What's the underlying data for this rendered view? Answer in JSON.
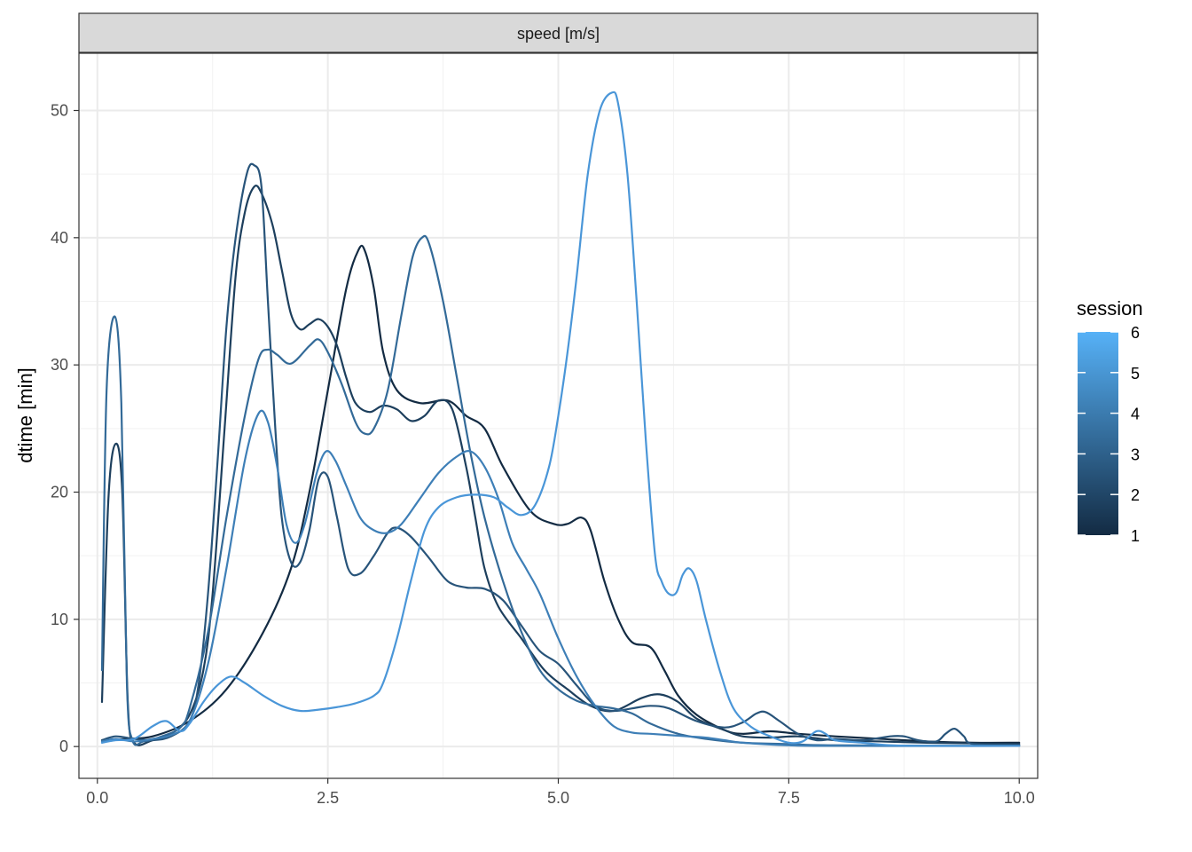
{
  "chart_data": {
    "type": "line",
    "facet_label": "speed [m/s]",
    "xlabel": "",
    "ylabel": "dtime [min]",
    "xlim": [
      -0.2,
      10.2
    ],
    "ylim": [
      -2.5,
      54.5
    ],
    "x_ticks": [
      0,
      2.5,
      5,
      7.5,
      10
    ],
    "x_tick_labels": [
      "0.0",
      "2.5",
      "5.0",
      "7.5",
      "10.0"
    ],
    "y_ticks": [
      0,
      10,
      20,
      30,
      40,
      50
    ],
    "y_tick_labels": [
      "0",
      "10",
      "20",
      "30",
      "40",
      "50"
    ],
    "grid": true,
    "legend": {
      "title": "session",
      "position": "right",
      "type": "colorbar",
      "breaks": [
        1,
        2,
        3,
        4,
        5,
        6
      ],
      "labels": [
        "1",
        "2",
        "3",
        "4",
        "5",
        "6"
      ],
      "low_color": "#132B43",
      "high_color": "#56B1F7"
    },
    "series": [
      {
        "session": 1,
        "color": "#132B43",
        "points": [
          [
            0.05,
            0.5
          ],
          [
            0.3,
            0.6
          ],
          [
            0.6,
            0.8
          ],
          [
            1.0,
            2.0
          ],
          [
            1.4,
            4.5
          ],
          [
            1.8,
            9.0
          ],
          [
            2.1,
            14.0
          ],
          [
            2.3,
            20.0
          ],
          [
            2.5,
            28.0
          ],
          [
            2.7,
            36.0
          ],
          [
            2.83,
            39.0
          ],
          [
            2.9,
            39.0
          ],
          [
            3.0,
            36.0
          ],
          [
            3.1,
            31.0
          ],
          [
            3.25,
            28.0
          ],
          [
            3.5,
            27.0
          ],
          [
            3.8,
            27.2
          ],
          [
            4.0,
            26.0
          ],
          [
            4.2,
            25.0
          ],
          [
            4.4,
            22.0
          ],
          [
            4.7,
            18.5
          ],
          [
            4.95,
            17.5
          ],
          [
            5.1,
            17.5
          ],
          [
            5.25,
            18.0
          ],
          [
            5.35,
            17.0
          ],
          [
            5.5,
            13.0
          ],
          [
            5.65,
            10.0
          ],
          [
            5.8,
            8.2
          ],
          [
            6.0,
            7.8
          ],
          [
            6.15,
            6.0
          ],
          [
            6.3,
            4.0
          ],
          [
            6.5,
            2.5
          ],
          [
            6.8,
            1.3
          ],
          [
            7.0,
            1.0
          ],
          [
            7.3,
            1.2
          ],
          [
            7.6,
            1.0
          ],
          [
            8.0,
            0.8
          ],
          [
            8.5,
            0.6
          ],
          [
            9.0,
            0.4
          ],
          [
            9.5,
            0.3
          ],
          [
            10.0,
            0.3
          ]
        ]
      },
      {
        "session": 2,
        "color": "#1D3F5D",
        "points": [
          [
            0.05,
            3.5
          ],
          [
            0.12,
            19.5
          ],
          [
            0.2,
            23.8
          ],
          [
            0.27,
            20.0
          ],
          [
            0.33,
            3.5
          ],
          [
            0.4,
            0.3
          ],
          [
            0.6,
            0.5
          ],
          [
            0.8,
            1.0
          ],
          [
            1.0,
            2.5
          ],
          [
            1.15,
            6.0
          ],
          [
            1.25,
            12.0
          ],
          [
            1.38,
            25.0
          ],
          [
            1.5,
            37.0
          ],
          [
            1.6,
            42.0
          ],
          [
            1.7,
            44.0
          ],
          [
            1.78,
            43.5
          ],
          [
            1.9,
            41.0
          ],
          [
            2.0,
            37.5
          ],
          [
            2.1,
            34.0
          ],
          [
            2.2,
            32.8
          ],
          [
            2.3,
            33.2
          ],
          [
            2.4,
            33.6
          ],
          [
            2.5,
            33.0
          ],
          [
            2.6,
            31.5
          ],
          [
            2.7,
            29.0
          ],
          [
            2.8,
            27.0
          ],
          [
            2.95,
            26.3
          ],
          [
            3.1,
            26.8
          ],
          [
            3.25,
            26.5
          ],
          [
            3.4,
            25.6
          ],
          [
            3.55,
            26.0
          ],
          [
            3.7,
            27.2
          ],
          [
            3.85,
            26.5
          ],
          [
            4.0,
            22.0
          ],
          [
            4.1,
            18.0
          ],
          [
            4.2,
            14.0
          ],
          [
            4.35,
            11.0
          ],
          [
            4.6,
            8.5
          ],
          [
            4.85,
            6.0
          ],
          [
            5.1,
            4.5
          ],
          [
            5.35,
            3.2
          ],
          [
            5.6,
            2.8
          ],
          [
            5.9,
            3.8
          ],
          [
            6.1,
            4.1
          ],
          [
            6.3,
            3.5
          ],
          [
            6.5,
            2.2
          ],
          [
            6.8,
            1.3
          ],
          [
            7.0,
            0.8
          ],
          [
            7.3,
            0.7
          ],
          [
            7.6,
            0.8
          ],
          [
            8.0,
            0.5
          ],
          [
            8.5,
            0.4
          ],
          [
            9.0,
            0.3
          ],
          [
            10.0,
            0.2
          ]
        ]
      },
      {
        "session": 3,
        "color": "#28547A",
        "points": [
          [
            0.05,
            0.5
          ],
          [
            0.2,
            0.8
          ],
          [
            0.4,
            0.6
          ],
          [
            0.6,
            0.5
          ],
          [
            0.8,
            0.8
          ],
          [
            1.0,
            2.0
          ],
          [
            1.1,
            5.0
          ],
          [
            1.2,
            12.0
          ],
          [
            1.3,
            22.0
          ],
          [
            1.4,
            33.0
          ],
          [
            1.5,
            40.0
          ],
          [
            1.62,
            45.0
          ],
          [
            1.7,
            45.7
          ],
          [
            1.78,
            44.0
          ],
          [
            1.85,
            35.0
          ],
          [
            1.93,
            25.0
          ],
          [
            2.0,
            18.0
          ],
          [
            2.1,
            14.5
          ],
          [
            2.2,
            14.5
          ],
          [
            2.3,
            17.0
          ],
          [
            2.4,
            21.0
          ],
          [
            2.5,
            21.2
          ],
          [
            2.6,
            18.0
          ],
          [
            2.72,
            14.0
          ],
          [
            2.85,
            13.6
          ],
          [
            3.0,
            15.0
          ],
          [
            3.15,
            16.8
          ],
          [
            3.25,
            17.2
          ],
          [
            3.4,
            16.5
          ],
          [
            3.6,
            14.8
          ],
          [
            3.8,
            13.0
          ],
          [
            4.0,
            12.5
          ],
          [
            4.2,
            12.4
          ],
          [
            4.4,
            11.5
          ],
          [
            4.6,
            9.5
          ],
          [
            4.8,
            7.5
          ],
          [
            5.0,
            6.5
          ],
          [
            5.2,
            4.8
          ],
          [
            5.4,
            3.2
          ],
          [
            5.6,
            2.8
          ],
          [
            5.8,
            3.0
          ],
          [
            6.0,
            3.2
          ],
          [
            6.2,
            3.0
          ],
          [
            6.5,
            2.0
          ],
          [
            6.8,
            1.5
          ],
          [
            7.0,
            1.9
          ],
          [
            7.15,
            2.6
          ],
          [
            7.25,
            2.7
          ],
          [
            7.4,
            2.0
          ],
          [
            7.6,
            1.0
          ],
          [
            7.8,
            0.5
          ],
          [
            8.0,
            0.6
          ],
          [
            8.3,
            0.5
          ],
          [
            8.6,
            0.8
          ],
          [
            8.75,
            0.8
          ],
          [
            8.9,
            0.5
          ],
          [
            9.1,
            0.4
          ],
          [
            9.2,
            1.0
          ],
          [
            9.3,
            1.4
          ],
          [
            9.4,
            0.8
          ],
          [
            9.5,
            0.2
          ],
          [
            10.0,
            0.1
          ]
        ]
      },
      {
        "session": 4,
        "color": "#336A98",
        "points": [
          [
            0.05,
            6.0
          ],
          [
            0.1,
            28.0
          ],
          [
            0.19,
            33.8
          ],
          [
            0.26,
            27.0
          ],
          [
            0.32,
            5.0
          ],
          [
            0.38,
            0.5
          ],
          [
            0.5,
            0.4
          ],
          [
            0.7,
            0.8
          ],
          [
            0.9,
            1.5
          ],
          [
            1.0,
            3.0
          ],
          [
            1.2,
            9.0
          ],
          [
            1.4,
            18.0
          ],
          [
            1.6,
            26.0
          ],
          [
            1.75,
            30.5
          ],
          [
            1.85,
            31.2
          ],
          [
            1.95,
            30.8
          ],
          [
            2.1,
            30.1
          ],
          [
            2.3,
            31.5
          ],
          [
            2.4,
            32.0
          ],
          [
            2.5,
            31.0
          ],
          [
            2.65,
            28.5
          ],
          [
            2.8,
            25.5
          ],
          [
            2.9,
            24.6
          ],
          [
            3.0,
            25.0
          ],
          [
            3.15,
            28.0
          ],
          [
            3.3,
            34.0
          ],
          [
            3.42,
            38.5
          ],
          [
            3.52,
            40.0
          ],
          [
            3.6,
            39.5
          ],
          [
            3.75,
            35.0
          ],
          [
            3.9,
            29.0
          ],
          [
            4.05,
            23.0
          ],
          [
            4.2,
            18.0
          ],
          [
            4.4,
            13.0
          ],
          [
            4.6,
            9.0
          ],
          [
            4.8,
            6.0
          ],
          [
            5.0,
            4.5
          ],
          [
            5.2,
            3.6
          ],
          [
            5.4,
            3.2
          ],
          [
            5.6,
            3.0
          ],
          [
            5.8,
            2.6
          ],
          [
            6.0,
            1.8
          ],
          [
            6.3,
            1.0
          ],
          [
            6.6,
            0.6
          ],
          [
            7.0,
            0.3
          ],
          [
            7.5,
            0.2
          ],
          [
            8.0,
            0.1
          ],
          [
            10.0,
            0.05
          ]
        ]
      },
      {
        "session": 5,
        "color": "#3E7FB7",
        "points": [
          [
            0.05,
            0.4
          ],
          [
            0.2,
            0.6
          ],
          [
            0.4,
            0.4
          ],
          [
            0.6,
            0.6
          ],
          [
            0.8,
            0.9
          ],
          [
            1.0,
            2.0
          ],
          [
            1.2,
            6.5
          ],
          [
            1.4,
            14.0
          ],
          [
            1.6,
            22.5
          ],
          [
            1.75,
            26.2
          ],
          [
            1.85,
            25.5
          ],
          [
            1.95,
            22.0
          ],
          [
            2.05,
            17.5
          ],
          [
            2.15,
            16.0
          ],
          [
            2.25,
            17.5
          ],
          [
            2.38,
            21.5
          ],
          [
            2.48,
            23.2
          ],
          [
            2.58,
            22.5
          ],
          [
            2.7,
            20.5
          ],
          [
            2.85,
            18.0
          ],
          [
            3.0,
            17.0
          ],
          [
            3.15,
            16.8
          ],
          [
            3.3,
            17.5
          ],
          [
            3.5,
            19.5
          ],
          [
            3.7,
            21.5
          ],
          [
            3.9,
            22.8
          ],
          [
            4.05,
            23.2
          ],
          [
            4.2,
            22.0
          ],
          [
            4.35,
            19.5
          ],
          [
            4.5,
            16.0
          ],
          [
            4.65,
            14.0
          ],
          [
            4.8,
            12.0
          ],
          [
            5.0,
            8.5
          ],
          [
            5.2,
            5.5
          ],
          [
            5.4,
            3.2
          ],
          [
            5.6,
            1.6
          ],
          [
            5.8,
            1.1
          ],
          [
            6.0,
            1.0
          ],
          [
            6.2,
            0.9
          ],
          [
            6.4,
            0.8
          ],
          [
            6.6,
            0.7
          ],
          [
            6.8,
            0.5
          ],
          [
            7.0,
            0.3
          ],
          [
            7.5,
            0.1
          ],
          [
            8.0,
            0.05
          ],
          [
            10.0,
            0.05
          ]
        ]
      },
      {
        "session": 6,
        "color": "#4A96D8",
        "points": [
          [
            0.05,
            0.3
          ],
          [
            0.2,
            0.5
          ],
          [
            0.4,
            0.6
          ],
          [
            0.6,
            1.6
          ],
          [
            0.75,
            2.0
          ],
          [
            0.9,
            1.2
          ],
          [
            1.0,
            1.8
          ],
          [
            1.15,
            3.5
          ],
          [
            1.3,
            4.8
          ],
          [
            1.45,
            5.5
          ],
          [
            1.6,
            5.0
          ],
          [
            1.8,
            4.0
          ],
          [
            2.0,
            3.2
          ],
          [
            2.2,
            2.8
          ],
          [
            2.4,
            2.9
          ],
          [
            2.6,
            3.1
          ],
          [
            2.8,
            3.4
          ],
          [
            3.0,
            4.0
          ],
          [
            3.1,
            5.0
          ],
          [
            3.25,
            8.5
          ],
          [
            3.4,
            13.0
          ],
          [
            3.55,
            17.0
          ],
          [
            3.7,
            18.8
          ],
          [
            3.9,
            19.6
          ],
          [
            4.1,
            19.8
          ],
          [
            4.3,
            19.6
          ],
          [
            4.45,
            18.8
          ],
          [
            4.6,
            18.2
          ],
          [
            4.75,
            19.0
          ],
          [
            4.9,
            22.0
          ],
          [
            5.0,
            26.0
          ],
          [
            5.1,
            31.0
          ],
          [
            5.2,
            37.0
          ],
          [
            5.32,
            45.0
          ],
          [
            5.45,
            50.0
          ],
          [
            5.58,
            51.4
          ],
          [
            5.65,
            50.5
          ],
          [
            5.75,
            45.0
          ],
          [
            5.85,
            35.0
          ],
          [
            5.95,
            24.0
          ],
          [
            6.05,
            15.0
          ],
          [
            6.12,
            13.0
          ],
          [
            6.2,
            12.0
          ],
          [
            6.28,
            12.1
          ],
          [
            6.35,
            13.5
          ],
          [
            6.42,
            14.0
          ],
          [
            6.5,
            13.0
          ],
          [
            6.6,
            10.0
          ],
          [
            6.75,
            6.0
          ],
          [
            6.9,
            3.0
          ],
          [
            7.1,
            1.5
          ],
          [
            7.3,
            0.8
          ],
          [
            7.5,
            0.3
          ],
          [
            7.65,
            0.4
          ],
          [
            7.8,
            1.2
          ],
          [
            7.9,
            1.0
          ],
          [
            8.0,
            0.5
          ],
          [
            8.3,
            0.3
          ],
          [
            8.6,
            0.1
          ],
          [
            9.0,
            0.05
          ],
          [
            10.0,
            0.05
          ]
        ]
      }
    ]
  }
}
